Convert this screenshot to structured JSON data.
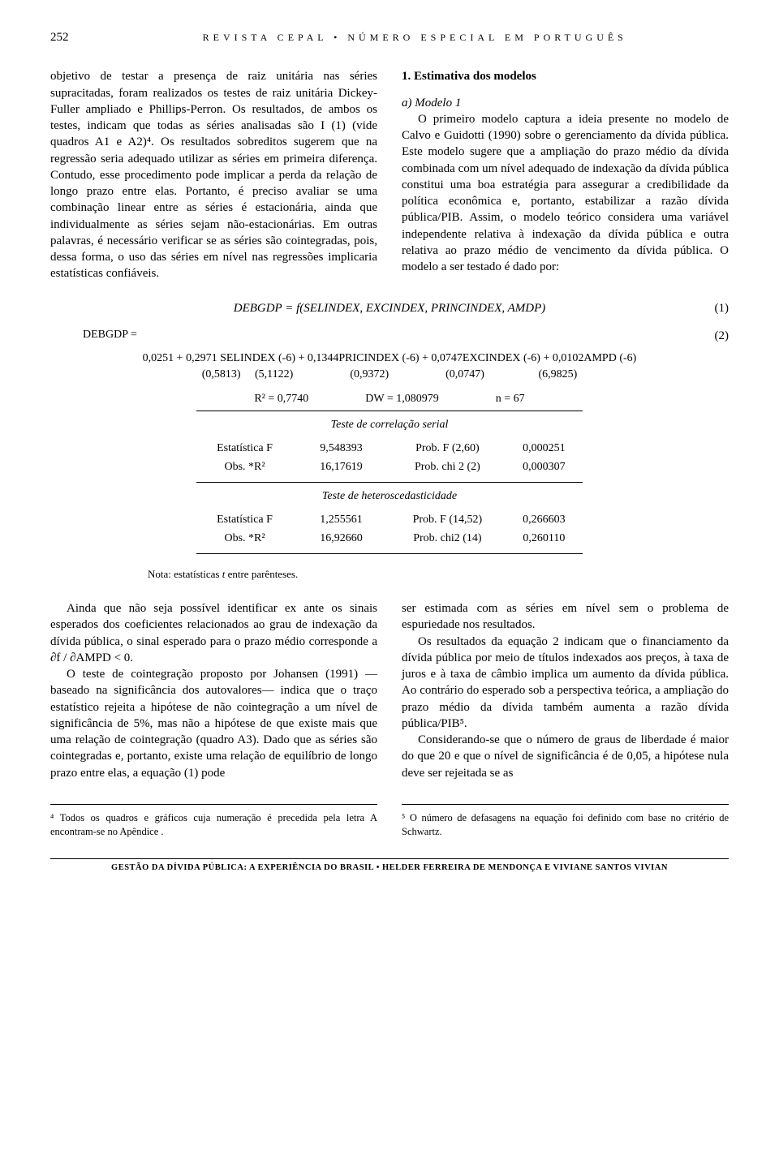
{
  "header": {
    "page_number": "252",
    "journal": "REVISTA CEPAL • NÚMERO ESPECIAL EM PORTUGUÊS"
  },
  "left_col": {
    "para": "objetivo de testar a presença de raiz unitária nas séries supracitadas, foram realizados os testes de raiz unitária Dickey-Fuller ampliado e Phillips-Perron. Os resultados, de ambos os testes, indicam que todas as séries analisadas são I (1) (vide quadros A1 e A2)⁴. Os resultados sobreditos sugerem que na regressão seria adequado utilizar as séries em primeira diferença. Contudo, esse procedimento pode implicar a perda da relação de longo prazo entre elas. Portanto, é preciso avaliar se uma combinação linear entre as séries é estacionária, ainda que individualmente as séries sejam não-estacionárias. Em outras palavras, é necessário verificar se as séries são cointegradas, pois, dessa forma, o uso das séries em nível nas regressões implicaria estatísticas confiáveis."
  },
  "right_col": {
    "title": "1.  Estimativa dos modelos",
    "sub_a": "a)  Modelo 1",
    "para": "O primeiro modelo captura a ideia presente no modelo de Calvo e Guidotti (1990) sobre o gerenciamento da dívida pública. Este modelo sugere que a ampliação do prazo médio da dívida combinada com um nível adequado de indexação da dívida pública constitui uma boa estratégia para assegurar a credibilidade da política econômica e, portanto, estabilizar a razão dívida pública/PIB. Assim, o modelo teórico considera uma variável independente relativa à indexação da dívida pública e outra relativa ao prazo médio de vencimento da dívida pública. O modelo a ser testado é dado por:"
  },
  "eq1": {
    "text": "DEBGDP = f(SELINDEX, EXCINDEX, PRINCINDEX, AMDP)",
    "num": "(1)"
  },
  "eq2": {
    "left": "DEBGDP =",
    "num": "(2)",
    "coef_line": "0,0251 + 0,2971 SELINDEX (-6) + 0,1344PRICINDEX (-6) + 0,0747EXCINDEX (-6) + 0,0102AMPD (-6)",
    "se_line": "(0,5813)     (5,1122)                    (0,9372)                    (0,0747)                   (6,9825)"
  },
  "stats": {
    "r2": "R² = 0,7740",
    "dw": "DW = 1,080979",
    "n": "n = 67"
  },
  "serial": {
    "title": "Teste de correlação serial",
    "rows": [
      [
        "Estatística F",
        "9,548393",
        "Prob. F (2,60)",
        "0,000251"
      ],
      [
        "Obs. *R²",
        "16,17619",
        "Prob. chi 2 (2)",
        "0,000307"
      ]
    ]
  },
  "hetero": {
    "title": "Teste de heteroscedasticidade",
    "rows": [
      [
        "Estatística F",
        "1,255561",
        "Prob. F (14,52)",
        "0,266603"
      ],
      [
        "Obs. *R²",
        "16,92660",
        "Prob. chi2 (14)",
        "0,260110"
      ]
    ]
  },
  "note": {
    "prefix": "Nota:",
    "rest": " estatísticas ",
    "t": "t",
    "rest2": " entre parênteses."
  },
  "lower_left": {
    "p1": "Ainda que não seja possível identificar ex ante os sinais esperados dos coeficientes relacionados ao grau de indexação da dívida pública, o sinal esperado para o prazo médio corresponde a ∂f / ∂AMPD < 0.",
    "p2": "O teste de cointegração proposto por Johansen (1991) —baseado na significância dos autovalores— indica que o traço estatístico rejeita a hipótese de não cointegração a um nível de significância de 5%, mas não a hipótese de que existe mais que uma relação de cointegração (quadro A3). Dado que as séries são cointegradas e, portanto, existe uma relação de equilíbrio de longo prazo entre elas, a equação (1) pode"
  },
  "lower_right": {
    "p1": "ser estimada com as séries em nível sem o problema de espuriedade nos resultados.",
    "p2": "Os resultados da equação 2 indicam que o financiamento da dívida pública por meio de títulos indexados aos preços, à taxa de juros e à taxa de câmbio implica um aumento da dívida pública. Ao contrário do esperado sob a perspectiva teórica, a ampliação do prazo médio da dívida também aumenta a razão dívida pública/PIB⁵.",
    "p3": "Considerando-se que o número de graus de liberdade é maior do que 20 e que o nível de significância é de 0,05, a hipótese nula deve ser rejeitada se as"
  },
  "footnotes": {
    "f4": "⁴ Todos os quadros e gráficos cuja numeração é precedida pela letra A encontram-se no Apêndice .",
    "f5": "⁵ O número de defasagens na equação foi definido com base no critério de Schwartz."
  },
  "footer": "GESTÃO DA DÍVIDA PÚBLICA: A EXPERIÊNCIA DO BRASIL • HELDER FERREIRA DE MENDONÇA E VIVIANE SANTOS VIVIAN"
}
